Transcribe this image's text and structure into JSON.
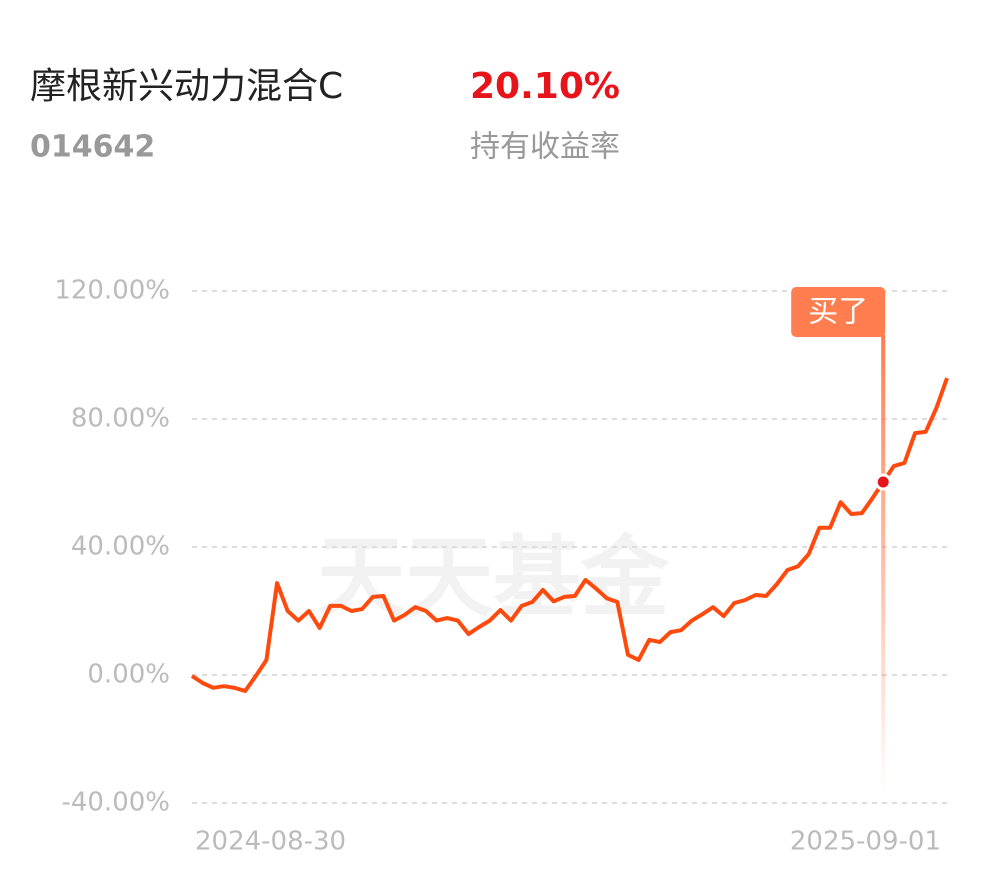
{
  "header": {
    "title": "摩根新兴动力混合C",
    "code": "014642",
    "return": "20.10%",
    "return_label": "持有收益率"
  },
  "chart_data": {
    "type": "line",
    "watermark": "天天基金",
    "categories": [
      "2024-08-30",
      null,
      null,
      null,
      null,
      null,
      null,
      null,
      null,
      null,
      null,
      null,
      null,
      null,
      null,
      null,
      null,
      null,
      null,
      null,
      null,
      null,
      null,
      null,
      null,
      null,
      null,
      null,
      null,
      null,
      null,
      null,
      null,
      null,
      null,
      null,
      null,
      null,
      null,
      null,
      null,
      null,
      null,
      null,
      null,
      null,
      null,
      null,
      null,
      null,
      null,
      null,
      null,
      null,
      null,
      null,
      null,
      null,
      null,
      null,
      null,
      null,
      null,
      null,
      null,
      null,
      null,
      null,
      null,
      null,
      null,
      "2025-09-01"
    ],
    "series": [
      {
        "color": "#ff4a0d",
        "values": [
          -0.3,
          -2.5,
          -4,
          -3.5,
          -4,
          -5,
          -0.3,
          4.7,
          28.7,
          20,
          17,
          20,
          14.7,
          21.6,
          21.6,
          20,
          20.6,
          24.4,
          24.7,
          17,
          18.8,
          21.2,
          20,
          17,
          17.8,
          17,
          12.8,
          15,
          17,
          20.3,
          17,
          21.6,
          22.8,
          26.6,
          23,
          24.4,
          24.7,
          29.7,
          27,
          24,
          22.8,
          6.3,
          4.7,
          11,
          10.3,
          13.4,
          14,
          17,
          19,
          21.2,
          18.4,
          22.5,
          23.4,
          25,
          24.7,
          28.4,
          32.8,
          34,
          37.8,
          46,
          46,
          54,
          50.3,
          50.6,
          55.3,
          60.3,
          65.3,
          66.25,
          75.6,
          76,
          83.4,
          92.8
        ]
      }
    ],
    "annotation": {
      "text": "买了",
      "at": 65,
      "color": "#ff7d4f"
    },
    "ylim": [
      -40,
      120
    ],
    "yticks": [
      {
        "value": -40,
        "label": "-40.00%"
      },
      {
        "value": 0,
        "label": "0.00%"
      },
      {
        "value": 40,
        "label": "40.00%"
      },
      {
        "value": 80,
        "label": "80.00%"
      },
      {
        "value": 120,
        "label": "120.00%"
      }
    ],
    "grid": true
  }
}
